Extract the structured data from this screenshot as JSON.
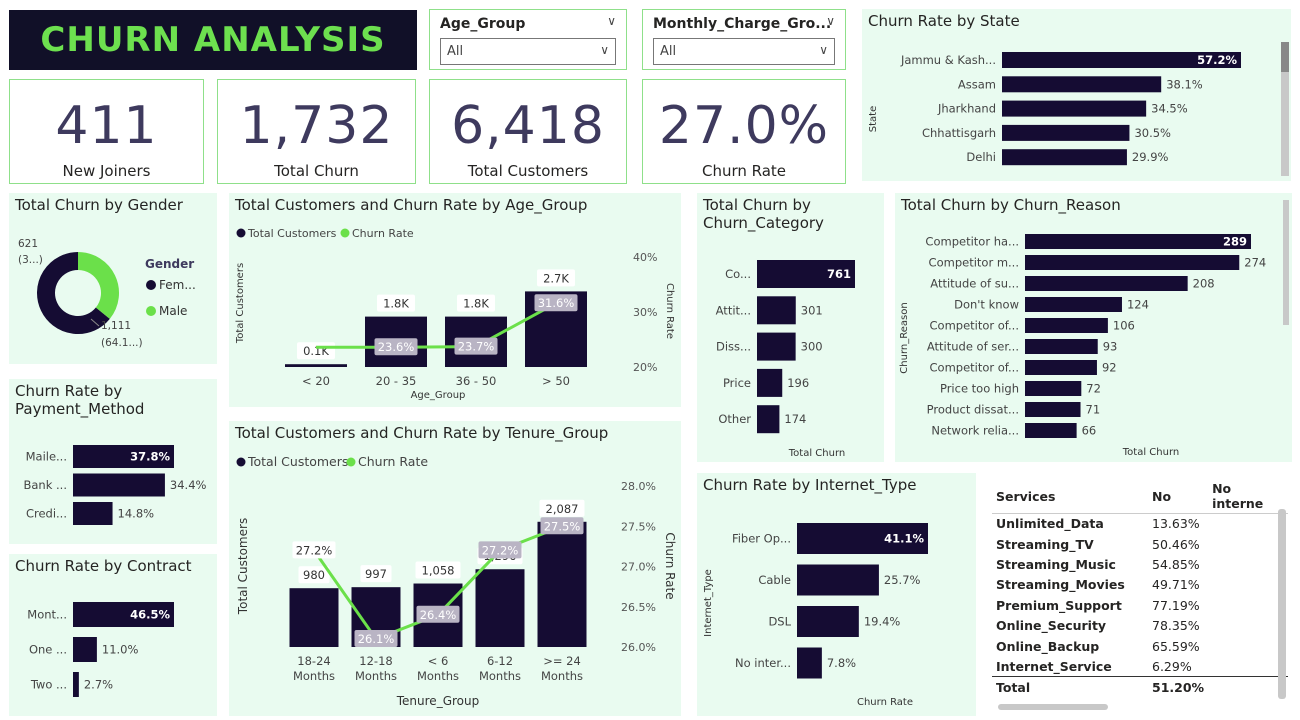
{
  "header": {
    "title": "CHURN ANALYSIS"
  },
  "slicers": [
    {
      "label": "Age_Group",
      "value": "All"
    },
    {
      "label": "Monthly_Charge_Gro...",
      "value": "All"
    }
  ],
  "kpis": [
    {
      "value": "411",
      "label": "New Joiners"
    },
    {
      "value": "1,732",
      "label": "Total Churn"
    },
    {
      "value": "6,418",
      "label": "Total Customers"
    },
    {
      "value": "27.0%",
      "label": "Churn Rate"
    }
  ],
  "colors": {
    "bar": "#150c33",
    "line": "#6be04a",
    "panel": "#e9fbf0",
    "kpi_text": "#3e3a5e",
    "title_text": "#6de04f"
  },
  "chart_data": [
    {
      "id": "state",
      "type": "bar",
      "orientation": "horizontal",
      "title": "Churn Rate by State",
      "ylabel": "State",
      "categories": [
        "Jammu & Kash...",
        "Assam",
        "Jharkhand",
        "Chhattisgarh",
        "Delhi"
      ],
      "values": [
        57.2,
        38.1,
        34.5,
        30.5,
        29.9
      ],
      "labels": [
        "57.2%",
        "38.1%",
        "34.5%",
        "30.5%",
        "29.9%"
      ],
      "xlim": [
        0,
        57.2
      ]
    },
    {
      "id": "gender",
      "type": "pie",
      "variant": "donut",
      "title": "Total Churn by Gender",
      "legend_title": "Gender",
      "categories": [
        "Fem...",
        "Male"
      ],
      "values": [
        1111,
        621
      ],
      "labels": [
        "1,111\n(64.1...)",
        "621\n(3...)"
      ]
    },
    {
      "id": "age",
      "type": "bar",
      "title": "Total Customers and Churn Rate by Age_Group",
      "xlabel": "Age_Group",
      "ylabel": "Total Customers",
      "y2label": "Churn Rate",
      "categories": [
        "< 20",
        "20 - 35",
        "36 - 50",
        "> 50"
      ],
      "series": [
        {
          "name": "Total Customers",
          "kind": "bar",
          "values": [
            0.1,
            1.8,
            1.8,
            2.7
          ],
          "labels": [
            "0.1K",
            "1.8K",
            "1.8K",
            "2.7K"
          ]
        },
        {
          "name": "Churn Rate",
          "kind": "line",
          "values": [
            23.6,
            23.6,
            23.7,
            31.6
          ],
          "labels": [
            "",
            "23.6%",
            "23.7%",
            "31.6%"
          ]
        }
      ],
      "ylim": [
        0,
        3.0
      ],
      "y2lim": [
        20,
        40
      ],
      "y2ticks": [
        "20%",
        "30%",
        "40%"
      ]
    },
    {
      "id": "category",
      "type": "bar",
      "orientation": "horizontal",
      "title": "Total Churn by Churn_Category",
      "xlabel": "Total Churn",
      "categories": [
        "Co...",
        "Attit...",
        "Diss...",
        "Price",
        "Other"
      ],
      "values": [
        761,
        301,
        300,
        196,
        174
      ],
      "labels": [
        "761",
        "301",
        "300",
        "196",
        "174"
      ],
      "xlim": [
        0,
        761
      ]
    },
    {
      "id": "reason",
      "type": "bar",
      "orientation": "horizontal",
      "title": "Total Churn by Churn_Reason",
      "xlabel": "Total Churn",
      "ylabel": "Churn_Reason",
      "categories": [
        "Competitor ha...",
        "Competitor m...",
        "Attitude of su...",
        "Don't know",
        "Competitor of...",
        "Attitude of ser...",
        "Competitor of...",
        "Price too high",
        "Product dissat...",
        "Network relia..."
      ],
      "values": [
        289,
        274,
        208,
        124,
        106,
        93,
        92,
        72,
        71,
        66
      ],
      "labels": [
        "289",
        "274",
        "208",
        "124",
        "106",
        "93",
        "92",
        "72",
        "71",
        "66"
      ],
      "xlim": [
        0,
        289
      ]
    },
    {
      "id": "payment",
      "type": "bar",
      "orientation": "horizontal",
      "title": "Churn Rate by Payment_Method",
      "categories": [
        "Maile...",
        "Bank ...",
        "Credi..."
      ],
      "values": [
        37.8,
        34.4,
        14.8
      ],
      "labels": [
        "37.8%",
        "34.4%",
        "14.8%"
      ],
      "xlim": [
        0,
        37.8
      ]
    },
    {
      "id": "contract",
      "type": "bar",
      "orientation": "horizontal",
      "title": "Churn Rate by Contract",
      "categories": [
        "Mont...",
        "One ...",
        "Two ..."
      ],
      "values": [
        46.5,
        11.0,
        2.7
      ],
      "labels": [
        "46.5%",
        "11.0%",
        "2.7%"
      ],
      "xlim": [
        0,
        46.5
      ]
    },
    {
      "id": "tenure",
      "type": "bar",
      "title": "Total Customers and Churn Rate by Tenure_Group",
      "xlabel": "Tenure_Group",
      "ylabel": "Total Customers",
      "y2label": "Churn Rate",
      "categories": [
        "18-24 Months",
        "12-18 Months",
        "< 6 Months",
        "6-12 Months",
        ">= 24 Months"
      ],
      "series": [
        {
          "name": "Total Customers",
          "kind": "bar",
          "values": [
            980,
            997,
            1058,
            1296,
            2087
          ],
          "labels": [
            "980",
            "997",
            "1,058",
            "1,296",
            "2,087"
          ]
        },
        {
          "name": "Churn Rate",
          "kind": "line",
          "values": [
            27.2,
            26.1,
            26.4,
            27.2,
            27.5
          ],
          "labels": [
            "27.2%",
            "26.1%",
            "26.4%",
            "27.2%",
            "27.5%"
          ]
        }
      ],
      "ylim": [
        0,
        2300
      ],
      "y2lim": [
        26.0,
        28.0
      ],
      "y2ticks": [
        "26.0%",
        "26.5%",
        "27.0%",
        "27.5%",
        "28.0%"
      ]
    },
    {
      "id": "internet",
      "type": "bar",
      "orientation": "horizontal",
      "title": "Churn Rate by Internet_Type",
      "xlabel": "Churn Rate",
      "ylabel": "Internet_Type",
      "categories": [
        "Fiber Op...",
        "Cable",
        "DSL",
        "No inter..."
      ],
      "values": [
        41.1,
        25.7,
        19.4,
        7.8
      ],
      "labels": [
        "41.1%",
        "25.7%",
        "19.4%",
        "7.8%"
      ],
      "xlim": [
        0,
        41.1
      ]
    },
    {
      "id": "services",
      "type": "table",
      "columns": [
        "Services",
        "No",
        "No interne"
      ],
      "rows": [
        [
          "Unlimited_Data",
          "13.63%",
          ""
        ],
        [
          "Streaming_TV",
          "50.46%",
          ""
        ],
        [
          "Streaming_Music",
          "54.85%",
          ""
        ],
        [
          "Streaming_Movies",
          "49.71%",
          ""
        ],
        [
          "Premium_Support",
          "77.19%",
          ""
        ],
        [
          "Online_Security",
          "78.35%",
          ""
        ],
        [
          "Online_Backup",
          "65.59%",
          ""
        ],
        [
          "Internet_Service",
          "6.29%",
          ""
        ]
      ],
      "total": [
        "Total",
        "51.20%",
        ""
      ]
    }
  ]
}
